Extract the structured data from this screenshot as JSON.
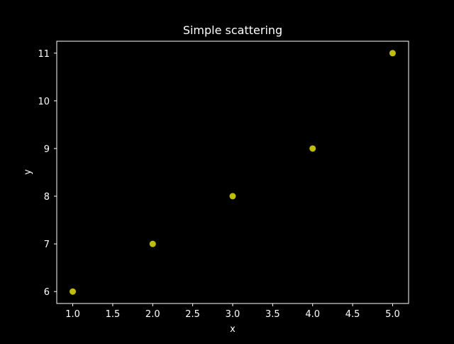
{
  "colors": {
    "background": "#000000",
    "axes_background": "#000000",
    "foreground": "#ffffff",
    "marker": "#bfbf00"
  },
  "chart_data": {
    "type": "scatter",
    "title": "Simple scattering",
    "xlabel": "x",
    "ylabel": "y",
    "x": [
      1.0,
      2.0,
      3.0,
      4.0,
      5.0
    ],
    "y": [
      6,
      7,
      8,
      9,
      11
    ],
    "xlim": [
      0.8,
      5.2
    ],
    "ylim": [
      5.75,
      11.25
    ],
    "xticks": [
      1.0,
      1.5,
      2.0,
      2.5,
      3.0,
      3.5,
      4.0,
      4.5,
      5.0
    ],
    "xtick_labels": [
      "1.0",
      "1.5",
      "2.0",
      "2.5",
      "3.0",
      "3.5",
      "4.0",
      "4.5",
      "5.0"
    ],
    "yticks": [
      6,
      7,
      8,
      9,
      10,
      11
    ],
    "ytick_labels": [
      "6",
      "7",
      "8",
      "9",
      "10",
      "11"
    ],
    "grid": false,
    "legend": "none"
  }
}
